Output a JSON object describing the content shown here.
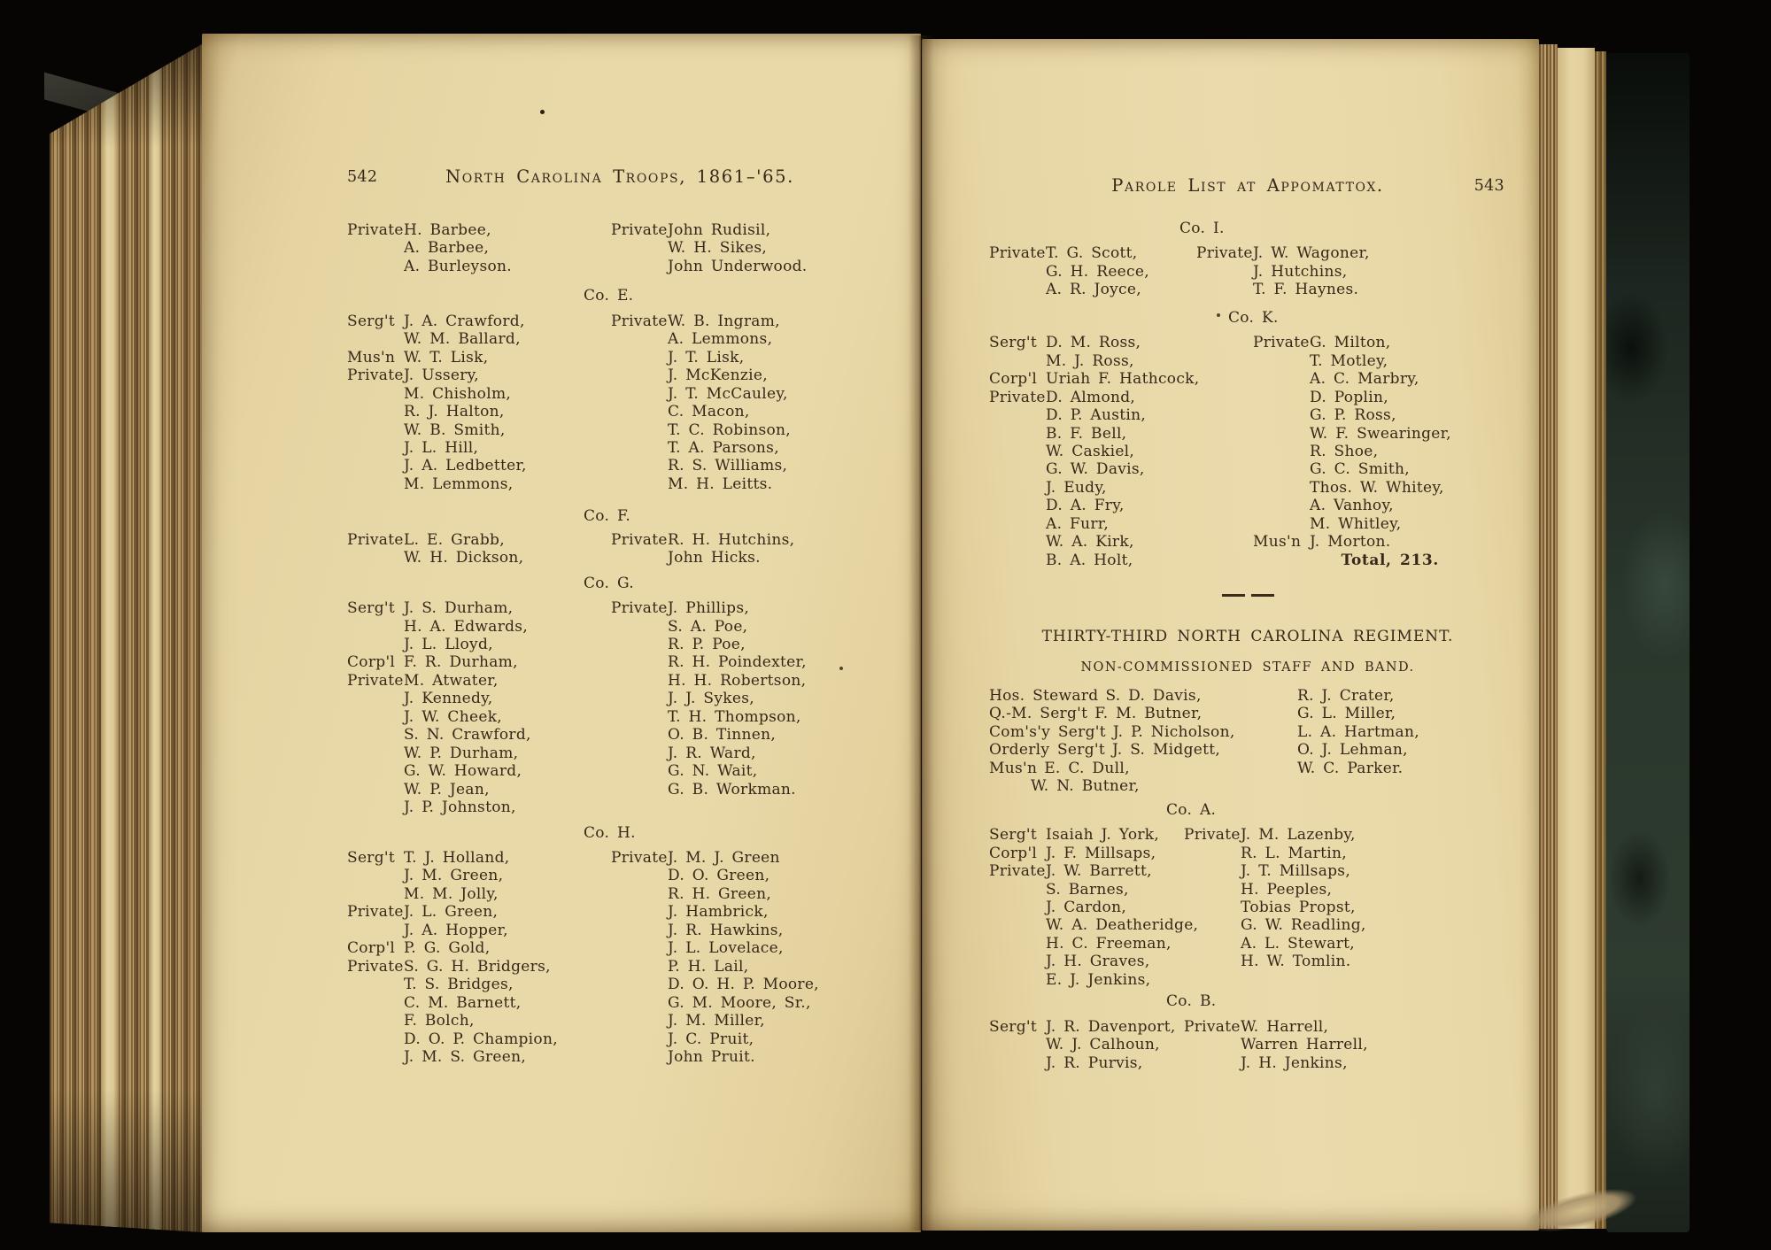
{
  "book": {
    "left_page": {
      "page_number": "542",
      "running_title": "North Carolina Troops, 1861–'65.",
      "sections": [
        {
          "kind": "company",
          "header": "",
          "left": [
            {
              "rank": "Private",
              "name": "H. Barbee,"
            },
            {
              "rank": "",
              "name": "A. Barbee,"
            },
            {
              "rank": "",
              "name": "A. Burleyson."
            }
          ],
          "right": [
            {
              "rank": "Private",
              "name": "John Rudisil,"
            },
            {
              "rank": "",
              "name": "W. H. Sikes,"
            },
            {
              "rank": "",
              "name": "John Underwood."
            }
          ]
        },
        {
          "kind": "company",
          "header": "Co. E.",
          "left": [
            {
              "rank": "Serg't",
              "name": "J. A. Crawford,"
            },
            {
              "rank": "",
              "name": "W. M. Ballard,"
            },
            {
              "rank": "Mus'n",
              "name": "W. T. Lisk,"
            },
            {
              "rank": "Private",
              "name": "J. Ussery,"
            },
            {
              "rank": "",
              "name": "M. Chisholm,"
            },
            {
              "rank": "",
              "name": "R. J. Halton,"
            },
            {
              "rank": "",
              "name": "W. B. Smith,"
            },
            {
              "rank": "",
              "name": "J. L. Hill,"
            },
            {
              "rank": "",
              "name": "J. A. Ledbetter,"
            },
            {
              "rank": "",
              "name": "M. Lemmons,"
            }
          ],
          "right": [
            {
              "rank": "Private",
              "name": "W. B. Ingram,"
            },
            {
              "rank": "",
              "name": "A. Lemmons,"
            },
            {
              "rank": "",
              "name": "J. T. Lisk,"
            },
            {
              "rank": "",
              "name": "J. McKenzie,"
            },
            {
              "rank": "",
              "name": "J. T. McCauley,"
            },
            {
              "rank": "",
              "name": "C. Macon,"
            },
            {
              "rank": "",
              "name": "T. C. Robinson,"
            },
            {
              "rank": "",
              "name": "T. A. Parsons,"
            },
            {
              "rank": "",
              "name": "R. S. Williams,"
            },
            {
              "rank": "",
              "name": "M. H. Leitts."
            }
          ]
        },
        {
          "kind": "company",
          "header": "Co. F.",
          "left": [
            {
              "rank": "Private",
              "name": "L. E. Grabb,"
            },
            {
              "rank": "",
              "name": "W. H. Dickson,"
            }
          ],
          "right": [
            {
              "rank": "Private",
              "name": "R. H. Hutchins,"
            },
            {
              "rank": "",
              "name": "John Hicks."
            }
          ]
        },
        {
          "kind": "company",
          "header": "Co. G.",
          "left": [
            {
              "rank": "Serg't",
              "name": "J. S. Durham,"
            },
            {
              "rank": "",
              "name": "H. A. Edwards,"
            },
            {
              "rank": "",
              "name": "J. L. Lloyd,"
            },
            {
              "rank": "Corp'l",
              "name": "F. R. Durham,"
            },
            {
              "rank": "Private",
              "name": "M. Atwater,"
            },
            {
              "rank": "",
              "name": "J. Kennedy,"
            },
            {
              "rank": "",
              "name": "J. W. Cheek,"
            },
            {
              "rank": "",
              "name": "S. N. Crawford,"
            },
            {
              "rank": "",
              "name": "W. P. Durham,"
            },
            {
              "rank": "",
              "name": "G. W. Howard,"
            },
            {
              "rank": "",
              "name": "W. P. Jean,"
            },
            {
              "rank": "",
              "name": "J. P. Johnston,"
            }
          ],
          "right": [
            {
              "rank": "Private",
              "name": "J. Phillips,"
            },
            {
              "rank": "",
              "name": "S. A. Poe,"
            },
            {
              "rank": "",
              "name": "R. P. Poe,"
            },
            {
              "rank": "",
              "name": "R. H. Poindexter,"
            },
            {
              "rank": "",
              "name": "H. H. Robertson,"
            },
            {
              "rank": "",
              "name": "J. J. Sykes,"
            },
            {
              "rank": "",
              "name": "T. H. Thompson,"
            },
            {
              "rank": "",
              "name": "O. B. Tinnen,"
            },
            {
              "rank": "",
              "name": "J. R. Ward,"
            },
            {
              "rank": "",
              "name": "G. N. Wait,"
            },
            {
              "rank": "",
              "name": "G. B. Workman."
            }
          ]
        },
        {
          "kind": "company",
          "header": "Co. H.",
          "left": [
            {
              "rank": "Serg't",
              "name": "T. J. Holland,"
            },
            {
              "rank": "",
              "name": "J. M. Green,"
            },
            {
              "rank": "",
              "name": "M. M. Jolly,"
            },
            {
              "rank": "Private",
              "name": "J. L. Green,"
            },
            {
              "rank": "",
              "name": "J. A. Hopper,"
            },
            {
              "rank": "Corp'l",
              "name": "P. G. Gold,"
            },
            {
              "rank": "Private",
              "name": "S. G. H. Bridgers,"
            },
            {
              "rank": "",
              "name": "T. S. Bridges,"
            },
            {
              "rank": "",
              "name": "C. M. Barnett,"
            },
            {
              "rank": "",
              "name": "F. Bolch,"
            },
            {
              "rank": "",
              "name": "D. O. P. Champion,"
            },
            {
              "rank": "",
              "name": "J. M. S. Green,"
            }
          ],
          "right": [
            {
              "rank": "Private",
              "name": "J. M. J. Green"
            },
            {
              "rank": "",
              "name": "D. O. Green,"
            },
            {
              "rank": "",
              "name": "R. H. Green,"
            },
            {
              "rank": "",
              "name": "J. Hambrick,"
            },
            {
              "rank": "",
              "name": "J. R. Hawkins,"
            },
            {
              "rank": "",
              "name": "J. L. Lovelace,"
            },
            {
              "rank": "",
              "name": "P. H. Lail,"
            },
            {
              "rank": "",
              "name": "D. O. H. P. Moore,"
            },
            {
              "rank": "",
              "name": "G. M. Moore, Sr.,"
            },
            {
              "rank": "",
              "name": "J. M. Miller,"
            },
            {
              "rank": "",
              "name": "J. C. Pruit,"
            },
            {
              "rank": "",
              "name": "John Pruit."
            }
          ]
        }
      ]
    },
    "right_page": {
      "page_number": "543",
      "running_title": "Parole List at Appomattox.",
      "sections": [
        {
          "kind": "company",
          "header": "Co. I.",
          "left": [
            {
              "rank": "Private",
              "name": "T. G. Scott,"
            },
            {
              "rank": "",
              "name": "G. H. Reece,"
            },
            {
              "rank": "",
              "name": "A. R. Joyce,"
            }
          ],
          "right": [
            {
              "rank": "Private",
              "name": "J. W. Wagoner,"
            },
            {
              "rank": "",
              "name": "J. Hutchins,"
            },
            {
              "rank": "",
              "name": "T. F. Haynes."
            }
          ]
        },
        {
          "kind": "company",
          "header": "Co. K.",
          "total": "Total, 213.",
          "left": [
            {
              "rank": "Serg't",
              "name": "D. M. Ross,"
            },
            {
              "rank": "",
              "name": "M. J. Ross,"
            },
            {
              "rank": "Corp'l",
              "name": "Uriah F. Hathcock,"
            },
            {
              "rank": "Private",
              "name": "D. Almond,"
            },
            {
              "rank": "",
              "name": "D. P. Austin,"
            },
            {
              "rank": "",
              "name": "B. F. Bell,"
            },
            {
              "rank": "",
              "name": "W. Caskiel,"
            },
            {
              "rank": "",
              "name": "G. W. Davis,"
            },
            {
              "rank": "",
              "name": "J. Eudy,"
            },
            {
              "rank": "",
              "name": "D. A. Fry,"
            },
            {
              "rank": "",
              "name": "A. Furr,"
            },
            {
              "rank": "",
              "name": "W. A. Kirk,"
            },
            {
              "rank": "",
              "name": "B. A. Holt,"
            }
          ],
          "right": [
            {
              "rank": "Private",
              "name": "G. Milton,"
            },
            {
              "rank": "",
              "name": "T. Motley,"
            },
            {
              "rank": "",
              "name": "A. C. Marbry,"
            },
            {
              "rank": "",
              "name": "D. Poplin,"
            },
            {
              "rank": "",
              "name": "G. P. Ross,"
            },
            {
              "rank": "",
              "name": "W. F. Swearinger,"
            },
            {
              "rank": "",
              "name": "R. Shoe,"
            },
            {
              "rank": "",
              "name": "G. C. Smith,"
            },
            {
              "rank": "",
              "name": "Thos. W. Whitey,"
            },
            {
              "rank": "",
              "name": "A. Vanhoy,"
            },
            {
              "rank": "",
              "name": "M. Whitley,"
            },
            {
              "rank": "Mus'n",
              "name": "J. Morton."
            }
          ]
        },
        {
          "kind": "rule"
        },
        {
          "kind": "heading",
          "title": "THIRTY-THIRD NORTH CAROLINA REGIMENT.",
          "subtitle": "NON-COMMISSIONED STAFF AND BAND."
        },
        {
          "kind": "staff",
          "left": [
            {
              "rank": "Hos. Steward",
              "name": "S. D. Davis,"
            },
            {
              "rank": "Q.-M. Serg't",
              "name": "F. M. Butner,"
            },
            {
              "rank": "Com's'y Serg't",
              "name": "J. P. Nicholson,"
            },
            {
              "rank": "Orderly Serg't",
              "name": "J. S. Midgett,"
            },
            {
              "rank": "Mus'n",
              "name": "E. C. Dull,"
            },
            {
              "rank": "",
              "name": "W. N. Butner,",
              "indent": true
            }
          ],
          "right": [
            "R. J. Crater,",
            "G. L. Miller,",
            "L. A. Hartman,",
            "O. J. Lehman,",
            "W. C. Parker."
          ]
        },
        {
          "kind": "company",
          "header": "Co. A.",
          "left": [
            {
              "rank": "Serg't",
              "name": "Isaiah J. York,"
            },
            {
              "rank": "Corp'l",
              "name": "J. F. Millsaps,"
            },
            {
              "rank": "Private",
              "name": "J. W. Barrett,"
            },
            {
              "rank": "",
              "name": "S. Barnes,"
            },
            {
              "rank": "",
              "name": "J. Cardon,"
            },
            {
              "rank": "",
              "name": "W. A. Deatheridge,"
            },
            {
              "rank": "",
              "name": "H. C. Freeman,"
            },
            {
              "rank": "",
              "name": "J. H. Graves,"
            },
            {
              "rank": "",
              "name": "E. J. Jenkins,"
            }
          ],
          "right": [
            {
              "rank": "Private",
              "name": "J. M. Lazenby,"
            },
            {
              "rank": "",
              "name": "R. L. Martin,"
            },
            {
              "rank": "",
              "name": "J. T. Millsaps,"
            },
            {
              "rank": "",
              "name": "H. Peeples,"
            },
            {
              "rank": "",
              "name": "Tobias Propst,"
            },
            {
              "rank": "",
              "name": "G. W. Readling,"
            },
            {
              "rank": "",
              "name": "A. L. Stewart,"
            },
            {
              "rank": "",
              "name": "H. W. Tomlin."
            }
          ]
        },
        {
          "kind": "company",
          "header": "Co. B.",
          "left": [
            {
              "rank": "Serg't",
              "name": "J. R. Davenport,"
            },
            {
              "rank": "",
              "name": "W. J. Calhoun,"
            },
            {
              "rank": "",
              "name": "J. R. Purvis,"
            }
          ],
          "right": [
            {
              "rank": "Private",
              "name": "W. Harrell,"
            },
            {
              "rank": "",
              "name": "Warren Harrell,"
            },
            {
              "rank": "",
              "name": "J. H. Jenkins,"
            }
          ]
        }
      ]
    }
  }
}
